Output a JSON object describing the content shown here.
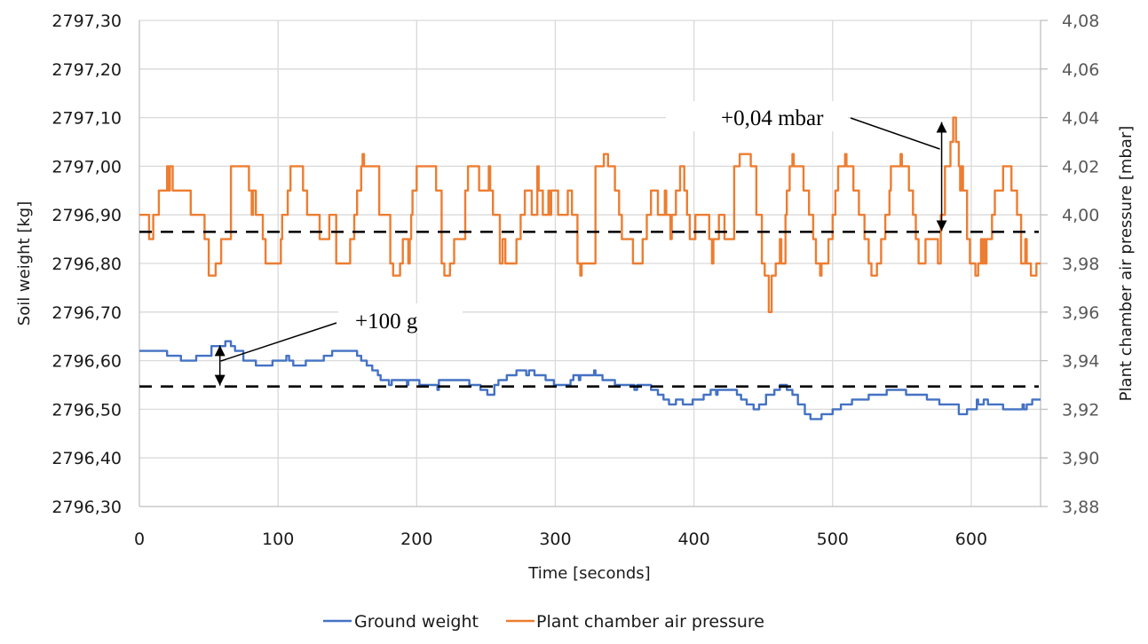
{
  "chart_data": {
    "type": "line",
    "title": "",
    "xlabel": "Time [seconds]",
    "ylabel_left": "Soil weight [kg]",
    "ylabel_right": "Plant chamber air pressure [mbar]",
    "xlim": [
      0,
      650
    ],
    "ylim_left": [
      2796.3,
      2797.3
    ],
    "ylim_right": [
      3.88,
      4.08
    ],
    "grid": true,
    "legend_position": "bottom",
    "x_ticks": [
      "0",
      "100",
      "200",
      "300",
      "400",
      "500",
      "600"
    ],
    "x_tick_values": [
      0,
      100,
      200,
      300,
      400,
      500,
      600
    ],
    "y_left_ticks": [
      "2797,30",
      "2797,20",
      "2797,10",
      "2797,00",
      "2796,90",
      "2796,80",
      "2796,70",
      "2796,60",
      "2796,50",
      "2796,40",
      "2796,30"
    ],
    "y_left_tick_values": [
      2797.3,
      2797.2,
      2797.1,
      2797.0,
      2796.9,
      2796.8,
      2796.7,
      2796.6,
      2796.5,
      2796.4,
      2796.3
    ],
    "y_right_ticks": [
      "4,08",
      "4,06",
      "4,04",
      "4,02",
      "4,00",
      "3,98",
      "3,96",
      "3,94",
      "3,92",
      "3,90",
      "3,88"
    ],
    "y_right_tick_values": [
      4.08,
      4.06,
      4.04,
      4.02,
      4.0,
      3.98,
      3.96,
      3.94,
      3.92,
      3.9,
      3.88
    ],
    "series": [
      {
        "name": "Ground weight",
        "axis": "left",
        "color": "#4472C4",
        "step": true,
        "points": [
          [
            0,
            2796.62
          ],
          [
            20,
            2796.61
          ],
          [
            30,
            2796.6
          ],
          [
            41,
            2796.61
          ],
          [
            52,
            2796.63
          ],
          [
            62,
            2796.64
          ],
          [
            66,
            2796.63
          ],
          [
            69,
            2796.62
          ],
          [
            75,
            2796.6
          ],
          [
            84,
            2796.59
          ],
          [
            96,
            2796.6
          ],
          [
            106,
            2796.61
          ],
          [
            108,
            2796.6
          ],
          [
            111,
            2796.59
          ],
          [
            120,
            2796.6
          ],
          [
            133,
            2796.61
          ],
          [
            139,
            2796.62
          ],
          [
            157,
            2796.61
          ],
          [
            160,
            2796.6
          ],
          [
            164,
            2796.59
          ],
          [
            168,
            2796.58
          ],
          [
            172,
            2796.57
          ],
          [
            174,
            2796.56
          ],
          [
            180,
            2796.55
          ],
          [
            182,
            2796.56
          ],
          [
            193,
            2796.55
          ],
          [
            194,
            2796.56
          ],
          [
            202,
            2796.55
          ],
          [
            215,
            2796.54
          ],
          [
            216,
            2796.56
          ],
          [
            238,
            2796.55
          ],
          [
            246,
            2796.54
          ],
          [
            251,
            2796.53
          ],
          [
            256,
            2796.55
          ],
          [
            259,
            2796.56
          ],
          [
            265,
            2796.57
          ],
          [
            272,
            2796.58
          ],
          [
            279,
            2796.57
          ],
          [
            281,
            2796.58
          ],
          [
            285,
            2796.57
          ],
          [
            293,
            2796.56
          ],
          [
            299,
            2796.55
          ],
          [
            311,
            2796.56
          ],
          [
            313,
            2796.57
          ],
          [
            317,
            2796.56
          ],
          [
            318,
            2796.57
          ],
          [
            328,
            2796.58
          ],
          [
            329,
            2796.57
          ],
          [
            334,
            2796.56
          ],
          [
            343,
            2796.55
          ],
          [
            357,
            2796.54
          ],
          [
            359,
            2796.55
          ],
          [
            369,
            2796.54
          ],
          [
            374,
            2796.53
          ],
          [
            378,
            2796.52
          ],
          [
            382,
            2796.51
          ],
          [
            387,
            2796.52
          ],
          [
            392,
            2796.51
          ],
          [
            399,
            2796.52
          ],
          [
            407,
            2796.53
          ],
          [
            412,
            2796.54
          ],
          [
            416,
            2796.53
          ],
          [
            417,
            2796.54
          ],
          [
            431,
            2796.53
          ],
          [
            434,
            2796.52
          ],
          [
            438,
            2796.51
          ],
          [
            443,
            2796.5
          ],
          [
            447,
            2796.51
          ],
          [
            452,
            2796.53
          ],
          [
            458,
            2796.54
          ],
          [
            462,
            2796.55
          ],
          [
            467,
            2796.54
          ],
          [
            471,
            2796.53
          ],
          [
            475,
            2796.51
          ],
          [
            480,
            2796.49
          ],
          [
            484,
            2796.48
          ],
          [
            492,
            2796.49
          ],
          [
            500,
            2796.5
          ],
          [
            506,
            2796.51
          ],
          [
            514,
            2796.52
          ],
          [
            526,
            2796.53
          ],
          [
            539,
            2796.54
          ],
          [
            553,
            2796.53
          ],
          [
            568,
            2796.52
          ],
          [
            577,
            2796.51
          ],
          [
            591,
            2796.49
          ],
          [
            597,
            2796.5
          ],
          [
            612,
            2796.51
          ],
          [
            605,
            2796.51
          ],
          [
            604,
            2796.52
          ],
          [
            606,
            2796.51
          ],
          [
            609,
            2796.52
          ],
          [
            623,
            2796.5
          ],
          [
            637,
            2796.51
          ],
          [
            638,
            2796.5
          ],
          [
            640,
            2796.51
          ],
          [
            644,
            2796.52
          ],
          [
            650,
            2796.52
          ]
        ]
      },
      {
        "name": "Plant chamber air pressure",
        "axis": "right",
        "color": "#ED7D31",
        "step": true,
        "points": [
          [
            0,
            4.0
          ],
          [
            7,
            3.99
          ],
          [
            10,
            4.0
          ],
          [
            14,
            4.01
          ],
          [
            20,
            4.02
          ],
          [
            21,
            4.01
          ],
          [
            22,
            4.02
          ],
          [
            24,
            4.01
          ],
          [
            37,
            4.0
          ],
          [
            47,
            3.99
          ],
          [
            50,
            3.975
          ],
          [
            55,
            3.98
          ],
          [
            59,
            3.99
          ],
          [
            66,
            4.02
          ],
          [
            79,
            4.01
          ],
          [
            81,
            4.0
          ],
          [
            82,
            4.01
          ],
          [
            84,
            4.0
          ],
          [
            85,
            4.0
          ],
          [
            89,
            3.99
          ],
          [
            91,
            3.98
          ],
          [
            102,
            3.99
          ],
          [
            103,
            4.0
          ],
          [
            107,
            4.01
          ],
          [
            109,
            4.02
          ],
          [
            118,
            4.01
          ],
          [
            121,
            4.0
          ],
          [
            130,
            3.99
          ],
          [
            137,
            4.0
          ],
          [
            142,
            3.98
          ],
          [
            152,
            3.99
          ],
          [
            155,
            4.0
          ],
          [
            157,
            4.01
          ],
          [
            160,
            4.02
          ],
          [
            161,
            4.025
          ],
          [
            162,
            4.02
          ],
          [
            173,
            4.0
          ],
          [
            181,
            3.98
          ],
          [
            183,
            3.975
          ],
          [
            188,
            3.98
          ],
          [
            190,
            3.99
          ],
          [
            194,
            3.98
          ],
          [
            195,
            3.99
          ],
          [
            196,
            4.0
          ],
          [
            197,
            4.01
          ],
          [
            200,
            4.02
          ],
          [
            214,
            4.01
          ],
          [
            218,
            3.98
          ],
          [
            220,
            3.975
          ],
          [
            224,
            3.98
          ],
          [
            227,
            3.99
          ],
          [
            235,
            4.01
          ],
          [
            237,
            4.02
          ],
          [
            245,
            4.01
          ],
          [
            252,
            4.02
          ],
          [
            253,
            4.01
          ],
          [
            255,
            4.0
          ],
          [
            260,
            3.98
          ],
          [
            262,
            3.99
          ],
          [
            264,
            3.98
          ],
          [
            272,
            3.99
          ],
          [
            275,
            4.0
          ],
          [
            278,
            4.01
          ],
          [
            283,
            4.0
          ],
          [
            287,
            4.02
          ],
          [
            288,
            4.01
          ],
          [
            291,
            4.0
          ],
          [
            295,
            4.01
          ],
          [
            296,
            4.0
          ],
          [
            297,
            4.01
          ],
          [
            298,
            4.01
          ],
          [
            302,
            4.0
          ],
          [
            309,
            4.01
          ],
          [
            312,
            4.0
          ],
          [
            316,
            3.98
          ],
          [
            318,
            3.975
          ],
          [
            319,
            3.98
          ],
          [
            329,
            4.02
          ],
          [
            335,
            4.025
          ],
          [
            338,
            4.02
          ],
          [
            343,
            4.01
          ],
          [
            346,
            4.0
          ],
          [
            348,
            3.99
          ],
          [
            356,
            3.98
          ],
          [
            363,
            3.99
          ],
          [
            366,
            4.0
          ],
          [
            369,
            4.01
          ],
          [
            374,
            4.0
          ],
          [
            379,
            4.01
          ],
          [
            380,
            4.0
          ],
          [
            383,
            3.99
          ],
          [
            384,
            4.0
          ],
          [
            387,
            4.01
          ],
          [
            390,
            4.02
          ],
          [
            393,
            4.01
          ],
          [
            395,
            4.0
          ],
          [
            397,
            3.99
          ],
          [
            401,
            4.0
          ],
          [
            411,
            3.99
          ],
          [
            413,
            3.98
          ],
          [
            414,
            3.99
          ],
          [
            418,
            4.0
          ],
          [
            422,
            3.99
          ],
          [
            429,
            4.02
          ],
          [
            433,
            4.025
          ],
          [
            441,
            4.02
          ],
          [
            445,
            4.0
          ],
          [
            449,
            3.98
          ],
          [
            451,
            3.975
          ],
          [
            454,
            3.96
          ],
          [
            456,
            3.975
          ],
          [
            459,
            3.98
          ],
          [
            462,
            3.99
          ],
          [
            463,
            3.98
          ],
          [
            466,
            4.0
          ],
          [
            467,
            4.01
          ],
          [
            469,
            4.02
          ],
          [
            471,
            4.025
          ],
          [
            472,
            4.02
          ],
          [
            479,
            4.01
          ],
          [
            483,
            4.0
          ],
          [
            486,
            3.99
          ],
          [
            488,
            3.98
          ],
          [
            491,
            3.975
          ],
          [
            492,
            3.98
          ],
          [
            497,
            3.99
          ],
          [
            500,
            4.0
          ],
          [
            502,
            4.01
          ],
          [
            504,
            4.02
          ],
          [
            509,
            4.025
          ],
          [
            510,
            4.02
          ],
          [
            515,
            4.01
          ],
          [
            519,
            4.0
          ],
          [
            523,
            3.99
          ],
          [
            526,
            3.98
          ],
          [
            528,
            3.975
          ],
          [
            532,
            3.98
          ],
          [
            535,
            3.99
          ],
          [
            538,
            4.0
          ],
          [
            541,
            4.01
          ],
          [
            542,
            4.02
          ],
          [
            549,
            4.025
          ],
          [
            550,
            4.02
          ],
          [
            555,
            4.01
          ],
          [
            558,
            4.0
          ],
          [
            560,
            3.99
          ],
          [
            562,
            3.98
          ],
          [
            567,
            3.99
          ],
          [
            576,
            3.98
          ],
          [
            578,
            4.0
          ],
          [
            581,
            4.02
          ],
          [
            585,
            4.03
          ],
          [
            587,
            4.04
          ],
          [
            589,
            4.03
          ],
          [
            591,
            4.02
          ],
          [
            592,
            4.01
          ],
          [
            593,
            4.02
          ],
          [
            594,
            4.01
          ],
          [
            597,
            3.99
          ],
          [
            599,
            3.98
          ],
          [
            603,
            3.975
          ],
          [
            605,
            3.98
          ],
          [
            607,
            3.99
          ],
          [
            608,
            3.98
          ],
          [
            609,
            3.99
          ],
          [
            610,
            3.98
          ],
          [
            611,
            3.99
          ],
          [
            615,
            4.0
          ],
          [
            617,
            4.01
          ],
          [
            623,
            4.02
          ],
          [
            629,
            4.01
          ],
          [
            633,
            4.0
          ],
          [
            636,
            3.98
          ],
          [
            639,
            3.99
          ],
          [
            640,
            3.98
          ],
          [
            643,
            3.975
          ],
          [
            647,
            3.98
          ],
          [
            650,
            3.98
          ]
        ]
      }
    ],
    "reference_lines": [
      {
        "axis": "left",
        "value": 2796.547,
        "style": "dashed"
      },
      {
        "axis": "right",
        "value": 3.993,
        "style": "dashed"
      }
    ],
    "annotations": [
      {
        "text": "+0,04 mbar",
        "axis": "right",
        "arrow_x": 578,
        "from": 3.993,
        "to": 4.04
      },
      {
        "text": "+100 g",
        "axis": "left",
        "arrow_x": 60,
        "from": 2796.547,
        "to": 2796.637
      }
    ]
  },
  "legend": {
    "items": [
      {
        "label": "Ground weight",
        "color": "#4472C4"
      },
      {
        "label": "Plant chamber air pressure",
        "color": "#ED7D31"
      }
    ]
  }
}
